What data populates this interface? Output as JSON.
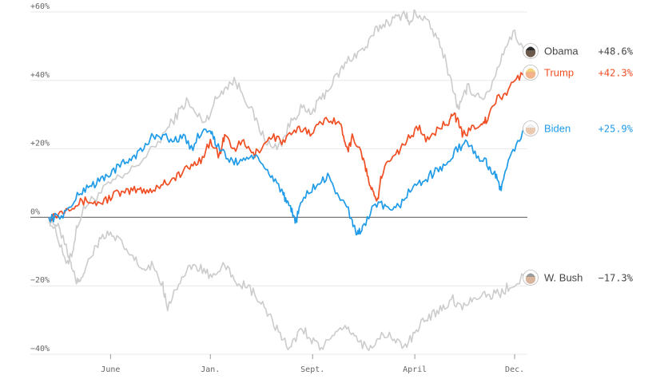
{
  "chart_data": {
    "type": "line",
    "title": "",
    "xlabel": "",
    "ylabel": "",
    "ylim": [
      -40,
      60
    ],
    "y_ticks": [
      {
        "value": 60,
        "label": "+60%"
      },
      {
        "value": 40,
        "label": "+40%"
      },
      {
        "value": 20,
        "label": "+20%"
      },
      {
        "value": 0,
        "label": "0%"
      },
      {
        "value": -20,
        "label": "−20%"
      },
      {
        "value": -40,
        "label": "−40%"
      }
    ],
    "x_ticks": [
      {
        "value": 0.13,
        "label": "June"
      },
      {
        "value": 0.34,
        "label": "Jan."
      },
      {
        "value": 0.555,
        "label": "Sept."
      },
      {
        "value": 0.77,
        "label": "April"
      },
      {
        "value": 0.98,
        "label": "Dec."
      }
    ],
    "grid": true,
    "zero_line": true,
    "series": [
      {
        "name": "Obama",
        "display": "+48.6%",
        "color": "#cccccc",
        "label_color": "#444444",
        "avatar": "obama-avatar-icon",
        "highlight": false,
        "points": [
          [
            0.0,
            0
          ],
          [
            0.02,
            -6
          ],
          [
            0.04,
            -14
          ],
          [
            0.05,
            -10
          ],
          [
            0.06,
            -2
          ],
          [
            0.08,
            4
          ],
          [
            0.1,
            6
          ],
          [
            0.13,
            10
          ],
          [
            0.16,
            12
          ],
          [
            0.19,
            16
          ],
          [
            0.22,
            20
          ],
          [
            0.25,
            26
          ],
          [
            0.27,
            30
          ],
          [
            0.29,
            34
          ],
          [
            0.31,
            30
          ],
          [
            0.33,
            28
          ],
          [
            0.35,
            34
          ],
          [
            0.37,
            38
          ],
          [
            0.39,
            40
          ],
          [
            0.41,
            36
          ],
          [
            0.43,
            30
          ],
          [
            0.45,
            24
          ],
          [
            0.47,
            20
          ],
          [
            0.49,
            22
          ],
          [
            0.51,
            28
          ],
          [
            0.53,
            32
          ],
          [
            0.55,
            30
          ],
          [
            0.57,
            34
          ],
          [
            0.59,
            38
          ],
          [
            0.61,
            42
          ],
          [
            0.63,
            46
          ],
          [
            0.65,
            48
          ],
          [
            0.67,
            50
          ],
          [
            0.69,
            55
          ],
          [
            0.71,
            57
          ],
          [
            0.73,
            58
          ],
          [
            0.75,
            60
          ],
          [
            0.76,
            56
          ],
          [
            0.77,
            60
          ],
          [
            0.79,
            58
          ],
          [
            0.81,
            54
          ],
          [
            0.83,
            48
          ],
          [
            0.85,
            38
          ],
          [
            0.86,
            32
          ],
          [
            0.87,
            34
          ],
          [
            0.88,
            38
          ],
          [
            0.9,
            36
          ],
          [
            0.92,
            35
          ],
          [
            0.94,
            42
          ],
          [
            0.96,
            50
          ],
          [
            0.98,
            54
          ],
          [
            1.0,
            48.6
          ]
        ]
      },
      {
        "name": "Trump",
        "display": "+42.3%",
        "color": "#f04e23",
        "label_color": "#f04e23",
        "avatar": "trump-avatar-icon",
        "highlight": true,
        "points": [
          [
            0.0,
            0
          ],
          [
            0.02,
            1
          ],
          [
            0.04,
            3
          ],
          [
            0.06,
            4
          ],
          [
            0.08,
            5
          ],
          [
            0.1,
            4
          ],
          [
            0.12,
            5
          ],
          [
            0.14,
            7
          ],
          [
            0.16,
            7
          ],
          [
            0.18,
            8
          ],
          [
            0.2,
            8
          ],
          [
            0.22,
            8
          ],
          [
            0.24,
            10
          ],
          [
            0.26,
            11
          ],
          [
            0.28,
            13
          ],
          [
            0.3,
            15
          ],
          [
            0.32,
            17
          ],
          [
            0.34,
            22
          ],
          [
            0.36,
            18
          ],
          [
            0.37,
            24
          ],
          [
            0.39,
            20
          ],
          [
            0.41,
            22
          ],
          [
            0.43,
            18
          ],
          [
            0.45,
            21
          ],
          [
            0.47,
            24
          ],
          [
            0.49,
            22
          ],
          [
            0.51,
            24
          ],
          [
            0.53,
            26
          ],
          [
            0.55,
            25
          ],
          [
            0.57,
            27
          ],
          [
            0.59,
            29
          ],
          [
            0.61,
            28
          ],
          [
            0.62,
            24
          ],
          [
            0.63,
            20
          ],
          [
            0.64,
            24
          ],
          [
            0.66,
            18
          ],
          [
            0.67,
            12
          ],
          [
            0.68,
            8
          ],
          [
            0.69,
            4
          ],
          [
            0.7,
            12
          ],
          [
            0.72,
            18
          ],
          [
            0.74,
            20
          ],
          [
            0.76,
            24
          ],
          [
            0.78,
            26
          ],
          [
            0.8,
            22
          ],
          [
            0.82,
            26
          ],
          [
            0.84,
            28
          ],
          [
            0.85,
            31
          ],
          [
            0.86,
            28
          ],
          [
            0.87,
            24
          ],
          [
            0.89,
            26
          ],
          [
            0.91,
            28
          ],
          [
            0.92,
            28
          ],
          [
            0.94,
            34
          ],
          [
            0.96,
            36
          ],
          [
            0.98,
            40
          ],
          [
            1.0,
            42.3
          ]
        ]
      },
      {
        "name": "Biden",
        "display": "+25.9%",
        "color": "#1f9be8",
        "label_color": "#1f9be8",
        "avatar": "biden-avatar-icon",
        "highlight": true,
        "points": [
          [
            0.0,
            0
          ],
          [
            0.02,
            0
          ],
          [
            0.04,
            2
          ],
          [
            0.06,
            6
          ],
          [
            0.08,
            9
          ],
          [
            0.1,
            10
          ],
          [
            0.12,
            12
          ],
          [
            0.14,
            14
          ],
          [
            0.16,
            16
          ],
          [
            0.18,
            18
          ],
          [
            0.2,
            20
          ],
          [
            0.22,
            24
          ],
          [
            0.24,
            24
          ],
          [
            0.26,
            22
          ],
          [
            0.28,
            24
          ],
          [
            0.3,
            20
          ],
          [
            0.32,
            25
          ],
          [
            0.34,
            26
          ],
          [
            0.35,
            22
          ],
          [
            0.37,
            18
          ],
          [
            0.39,
            16
          ],
          [
            0.41,
            17
          ],
          [
            0.43,
            18
          ],
          [
            0.45,
            15
          ],
          [
            0.47,
            12
          ],
          [
            0.49,
            8
          ],
          [
            0.5,
            4
          ],
          [
            0.51,
            2
          ],
          [
            0.52,
            -1
          ],
          [
            0.53,
            4
          ],
          [
            0.55,
            8
          ],
          [
            0.57,
            10
          ],
          [
            0.59,
            12
          ],
          [
            0.61,
            6
          ],
          [
            0.63,
            2
          ],
          [
            0.64,
            -2
          ],
          [
            0.65,
            -5
          ],
          [
            0.66,
            -3
          ],
          [
            0.68,
            2
          ],
          [
            0.7,
            4
          ],
          [
            0.72,
            1
          ],
          [
            0.74,
            4
          ],
          [
            0.76,
            8
          ],
          [
            0.78,
            10
          ],
          [
            0.8,
            12
          ],
          [
            0.82,
            14
          ],
          [
            0.84,
            16
          ],
          [
            0.86,
            20
          ],
          [
            0.88,
            22
          ],
          [
            0.9,
            18
          ],
          [
            0.92,
            16
          ],
          [
            0.93,
            14
          ],
          [
            0.94,
            12
          ],
          [
            0.95,
            8
          ],
          [
            0.96,
            14
          ],
          [
            0.98,
            20
          ],
          [
            1.0,
            25.9
          ]
        ]
      },
      {
        "name": "W. Bush",
        "display": "−17.3%",
        "color": "#cccccc",
        "label_color": "#444444",
        "avatar": "bush-avatar-icon",
        "highlight": false,
        "points": [
          [
            0.0,
            0
          ],
          [
            0.02,
            -3
          ],
          [
            0.04,
            -10
          ],
          [
            0.05,
            -16
          ],
          [
            0.06,
            -19
          ],
          [
            0.07,
            -17
          ],
          [
            0.08,
            -14
          ],
          [
            0.1,
            -8
          ],
          [
            0.12,
            -5
          ],
          [
            0.14,
            -6
          ],
          [
            0.16,
            -9
          ],
          [
            0.18,
            -12
          ],
          [
            0.2,
            -16
          ],
          [
            0.22,
            -14
          ],
          [
            0.24,
            -20
          ],
          [
            0.25,
            -26
          ],
          [
            0.27,
            -20
          ],
          [
            0.29,
            -16
          ],
          [
            0.31,
            -14
          ],
          [
            0.33,
            -16
          ],
          [
            0.35,
            -18
          ],
          [
            0.37,
            -14
          ],
          [
            0.39,
            -18
          ],
          [
            0.41,
            -20
          ],
          [
            0.43,
            -22
          ],
          [
            0.45,
            -26
          ],
          [
            0.47,
            -30
          ],
          [
            0.49,
            -36
          ],
          [
            0.51,
            -38
          ],
          [
            0.53,
            -32
          ],
          [
            0.55,
            -35
          ],
          [
            0.57,
            -38
          ],
          [
            0.59,
            -36
          ],
          [
            0.61,
            -34
          ],
          [
            0.63,
            -32
          ],
          [
            0.65,
            -36
          ],
          [
            0.67,
            -38
          ],
          [
            0.69,
            -36
          ],
          [
            0.71,
            -34
          ],
          [
            0.73,
            -36
          ],
          [
            0.75,
            -38
          ],
          [
            0.77,
            -34
          ],
          [
            0.79,
            -30
          ],
          [
            0.81,
            -28
          ],
          [
            0.83,
            -26
          ],
          [
            0.85,
            -24
          ],
          [
            0.87,
            -26
          ],
          [
            0.89,
            -24
          ],
          [
            0.91,
            -22
          ],
          [
            0.93,
            -23
          ],
          [
            0.95,
            -22
          ],
          [
            0.97,
            -20
          ],
          [
            1.0,
            -17.3
          ]
        ]
      }
    ]
  }
}
